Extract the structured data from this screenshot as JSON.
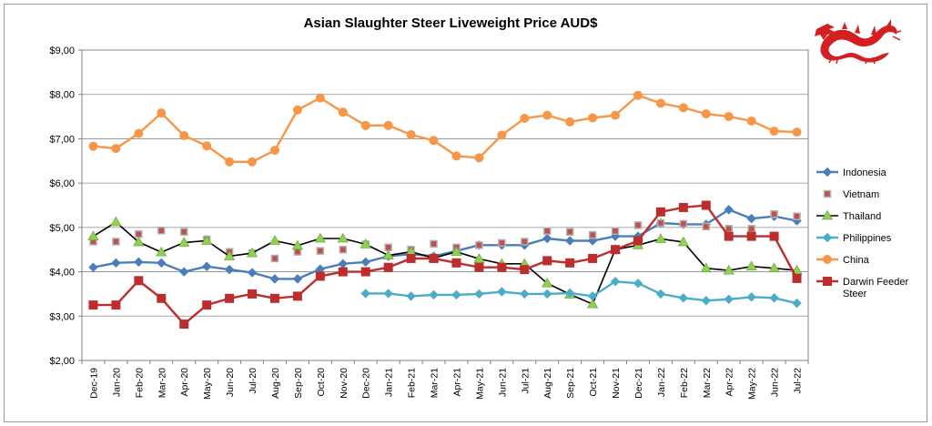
{
  "chart_data": {
    "type": "line",
    "title": "Asian Slaughter Steer Liveweight Price AUD$",
    "xlabel": "",
    "ylabel": "",
    "ylim": [
      2,
      9
    ],
    "y_ticks": [
      "$2,00",
      "$3,00",
      "$4,00",
      "$5,00",
      "$6,00",
      "$7,00",
      "$8,00",
      "$9,00"
    ],
    "grid": "horizontal",
    "legend_position": "right",
    "categories": [
      "Dec-19",
      "Jan-20",
      "Feb-20",
      "Mar-20",
      "Apr-20",
      "May-20",
      "Jun-20",
      "Jul-20",
      "Aug-20",
      "Sep-20",
      "Oct-20",
      "Nov-20",
      "Dec-20",
      "Jan-21",
      "Feb-21",
      "Mar-21",
      "Apr-21",
      "May-21",
      "Jun-21",
      "Jul-21",
      "Aug-21",
      "Sep-21",
      "Oct-21",
      "Nov-21",
      "Dec-21",
      "Jan-22",
      "Feb-22",
      "Mar-22",
      "Apr-22",
      "May-22",
      "Jun-22",
      "Jul-22"
    ],
    "series": [
      {
        "name": "Indonesia",
        "color": "#4a7ebb",
        "marker": "diamond",
        "line": true,
        "values": [
          4.1,
          4.2,
          4.22,
          4.2,
          4.0,
          4.12,
          4.05,
          3.98,
          3.84,
          3.84,
          4.06,
          4.18,
          4.22,
          4.35,
          4.4,
          4.35,
          4.47,
          4.6,
          4.6,
          4.6,
          4.75,
          4.7,
          4.7,
          4.8,
          4.8,
          5.1,
          5.07,
          5.07,
          5.4,
          5.2,
          5.25,
          5.15
        ]
      },
      {
        "name": "Vietnam",
        "color": "#c0504d",
        "marker": "square-gray",
        "line": false,
        "values": [
          4.68,
          4.68,
          4.85,
          4.93,
          4.9,
          4.73,
          4.45,
          4.42,
          4.3,
          4.45,
          4.47,
          4.5,
          4.62,
          4.55,
          4.5,
          4.63,
          4.55,
          4.6,
          4.65,
          4.68,
          4.92,
          4.9,
          4.83,
          4.92,
          5.05,
          5.1,
          5.08,
          5.02,
          4.97,
          4.97,
          5.3,
          5.25
        ]
      },
      {
        "name": "Thailand",
        "color": "#000000",
        "marker": "triangle-green",
        "line": true,
        "values": [
          4.8,
          5.12,
          4.67,
          4.44,
          4.66,
          4.7,
          4.35,
          4.42,
          4.7,
          4.59,
          4.75,
          4.75,
          4.62,
          4.37,
          4.45,
          4.31,
          4.45,
          4.29,
          4.18,
          4.18,
          3.74,
          3.49,
          3.27,
          4.5,
          4.6,
          4.74,
          4.67,
          4.08,
          4.03,
          4.12,
          4.08,
          4.03
        ]
      },
      {
        "name": "Philippines",
        "color": "#4bacc6",
        "marker": "diamond",
        "line": true,
        "values": [
          null,
          null,
          null,
          null,
          null,
          null,
          null,
          null,
          null,
          null,
          null,
          null,
          3.51,
          3.51,
          3.45,
          3.48,
          3.48,
          3.5,
          3.55,
          3.5,
          3.5,
          3.52,
          3.45,
          3.78,
          3.74,
          3.5,
          3.41,
          3.35,
          3.38,
          3.43,
          3.41,
          3.29
        ]
      },
      {
        "name": "China",
        "color": "#f79646",
        "marker": "circle",
        "line": true,
        "values": [
          6.83,
          6.78,
          7.12,
          7.58,
          7.07,
          6.84,
          6.48,
          6.48,
          6.74,
          7.65,
          7.92,
          7.6,
          7.3,
          7.3,
          7.09,
          6.96,
          6.61,
          6.57,
          7.08,
          7.46,
          7.53,
          7.38,
          7.47,
          7.53,
          7.98,
          7.8,
          7.7,
          7.56,
          7.5,
          7.4,
          7.17,
          7.15
        ]
      },
      {
        "name": "Darwin Feeder Steer",
        "color": "#be2d2d",
        "marker": "square",
        "line": true,
        "values": [
          3.25,
          3.25,
          3.8,
          3.4,
          2.82,
          3.25,
          3.4,
          3.5,
          3.4,
          3.45,
          3.9,
          4.0,
          4.0,
          4.1,
          4.3,
          4.3,
          4.2,
          4.1,
          4.1,
          4.05,
          4.25,
          4.2,
          4.3,
          4.5,
          4.7,
          5.35,
          5.45,
          5.5,
          4.8,
          4.8,
          4.8,
          3.85
        ]
      }
    ]
  },
  "logo": {
    "name": "red-dragon-logo",
    "color": "#d42020"
  }
}
